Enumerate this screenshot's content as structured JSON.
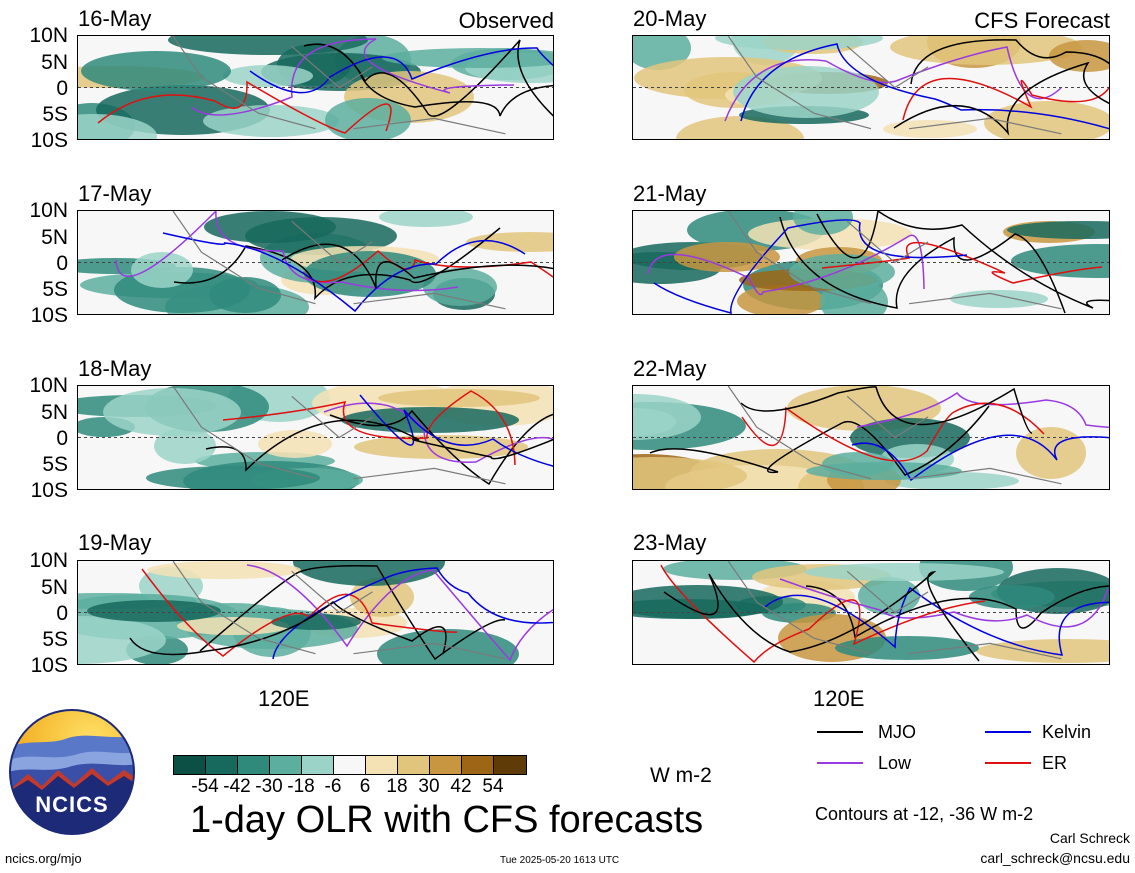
{
  "header": {
    "observed_label": "Observed",
    "forecast_label": "CFS Forecast"
  },
  "lat_labels": [
    "10N",
    "5N",
    "0",
    "5S",
    "10S"
  ],
  "lon_label": "120E",
  "panels": [
    {
      "date": "16-May",
      "type": "observed"
    },
    {
      "date": "17-May",
      "type": "observed"
    },
    {
      "date": "18-May",
      "type": "observed"
    },
    {
      "date": "19-May",
      "type": "observed"
    },
    {
      "date": "20-May",
      "type": "forecast"
    },
    {
      "date": "21-May",
      "type": "forecast"
    },
    {
      "date": "22-May",
      "type": "forecast"
    },
    {
      "date": "23-May",
      "type": "forecast"
    }
  ],
  "colorbar": {
    "unit": "W m-2",
    "labels": [
      "-54",
      "-42",
      "-30",
      "-18",
      "-6",
      "6",
      "18",
      "30",
      "42",
      "54"
    ],
    "colors": [
      "#0b4f45",
      "#17695d",
      "#2f8a7c",
      "#5cae9f",
      "#9bd3c8",
      "#f7f7f7",
      "#f4e2b5",
      "#e2c57c",
      "#c89641",
      "#9c6616",
      "#5e3b07"
    ]
  },
  "legend": {
    "items": [
      {
        "label": "MJO",
        "color": "#000000"
      },
      {
        "label": "Kelvin",
        "color": "#0000e0"
      },
      {
        "label": "Low",
        "color": "#9a3ae0"
      },
      {
        "label": "ER",
        "color": "#e01010"
      }
    ],
    "contours_note": "Contours at -12, -36 W m-2"
  },
  "title": "1-day OLR with CFS forecasts",
  "footer": {
    "author": "Carl Schreck",
    "email": "carl_schreck@ncsu.edu",
    "url": "ncics.org/mjo",
    "timestamp": "Tue 2025-05-20 1613 UTC",
    "logo_text": "NCICS"
  }
}
